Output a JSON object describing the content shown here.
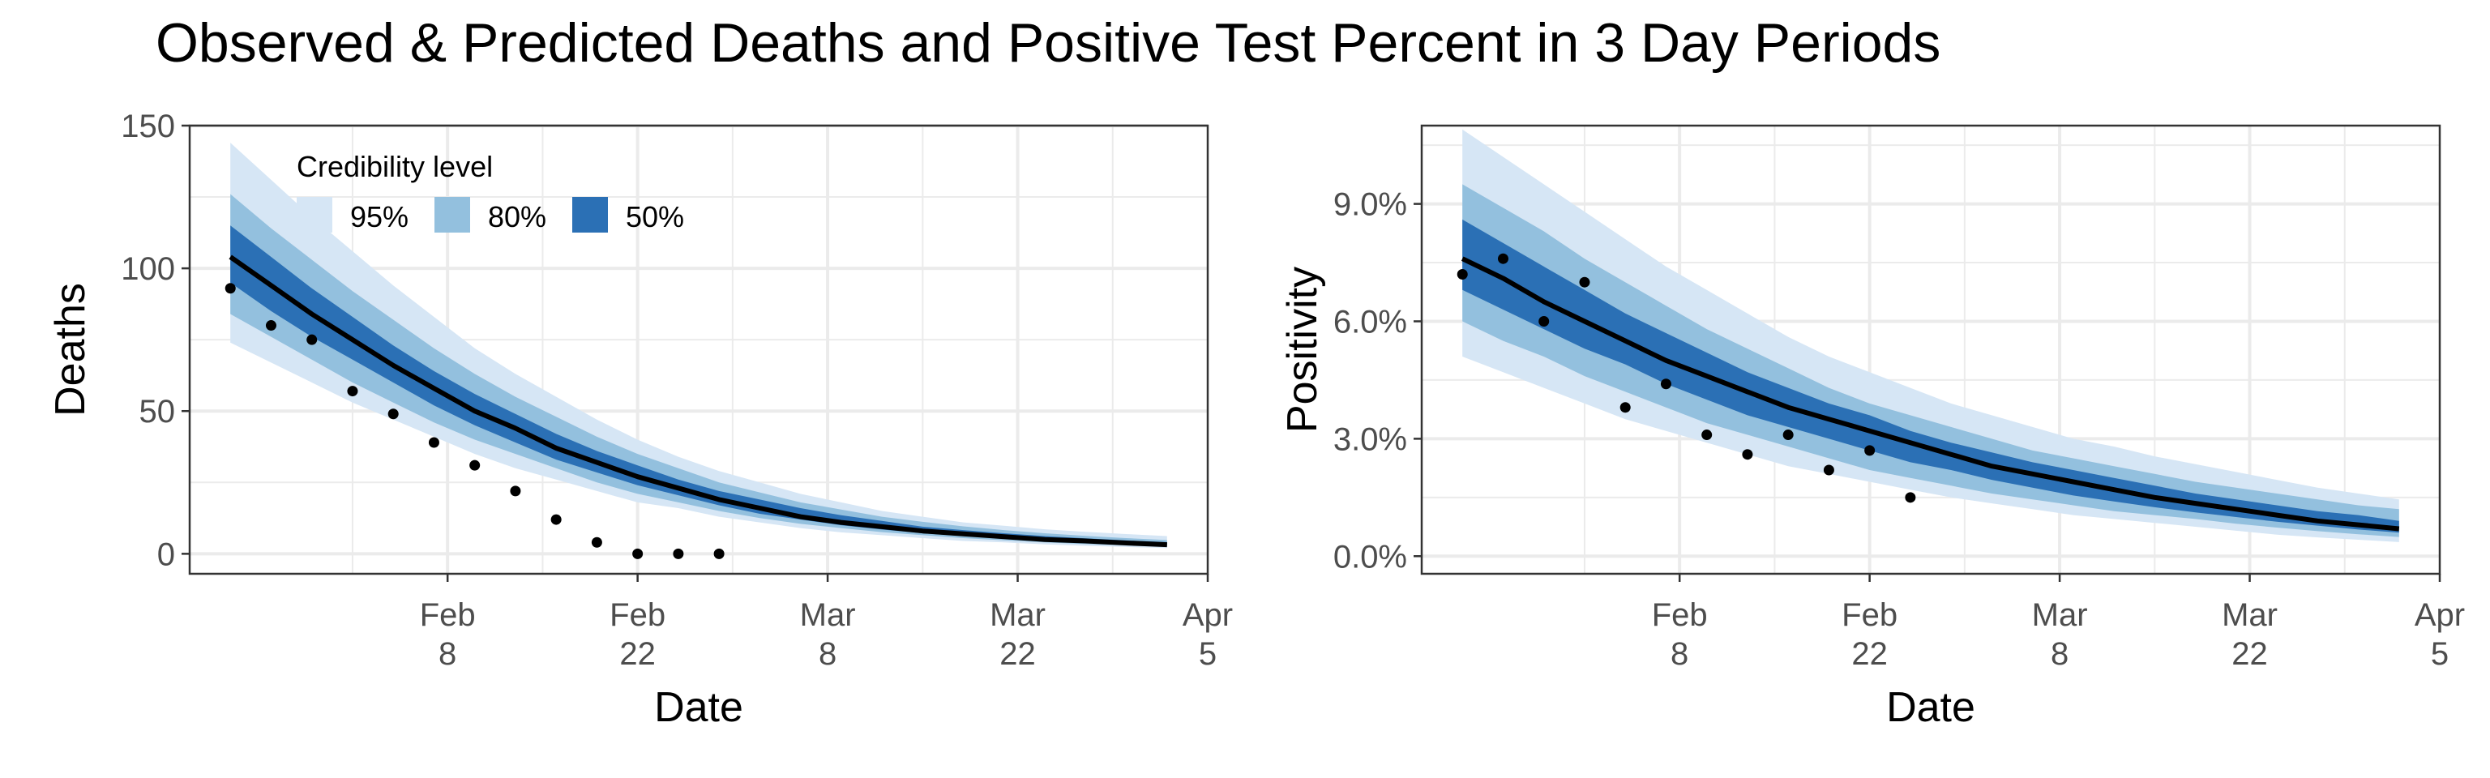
{
  "title": "Observed & Predicted Deaths and Positive Test Percent in 3 Day Periods",
  "legend": {
    "title": "Credibility level",
    "items": [
      {
        "label": "95%",
        "color": "#d6e6f5"
      },
      {
        "label": "80%",
        "color": "#93c0de"
      },
      {
        "label": "50%",
        "color": "#2b70b5"
      }
    ]
  },
  "colors": {
    "line": "#000000",
    "points": "#000000",
    "grid_major": "#ebebeb",
    "panel_border": "#333333"
  },
  "chart_data": [
    {
      "type": "line",
      "xlabel": "Date",
      "ylabel": "Deaths",
      "x_range": [
        "2021-01-20",
        "2021-04-05"
      ],
      "ylim": [
        -7,
        150
      ],
      "x_ticks": [
        {
          "date": "2021-02-08",
          "line1": "Feb",
          "line2": "8"
        },
        {
          "date": "2021-02-22",
          "line1": "Feb",
          "line2": "22"
        },
        {
          "date": "2021-03-08",
          "line1": "Mar",
          "line2": "8"
        },
        {
          "date": "2021-03-22",
          "line1": "Mar",
          "line2": "22"
        },
        {
          "date": "2021-04-05",
          "line1": "Apr",
          "line2": "5"
        }
      ],
      "y_ticks": [
        {
          "value": 0,
          "label": "0"
        },
        {
          "value": 50,
          "label": "50"
        },
        {
          "value": 100,
          "label": "100"
        },
        {
          "value": 150,
          "label": "150"
        }
      ],
      "grid": true,
      "legend_position": "top-left",
      "forecast": {
        "x": [
          "2021-01-23",
          "2021-01-26",
          "2021-01-29",
          "2021-02-01",
          "2021-02-04",
          "2021-02-07",
          "2021-02-10",
          "2021-02-13",
          "2021-02-16",
          "2021-02-19",
          "2021-02-22",
          "2021-02-25",
          "2021-02-28",
          "2021-03-03",
          "2021-03-06",
          "2021-03-09",
          "2021-03-12",
          "2021-03-15",
          "2021-03-18",
          "2021-03-21",
          "2021-03-24",
          "2021-03-27",
          "2021-03-30",
          "2021-04-02"
        ],
        "median": [
          104,
          94,
          84,
          75,
          66,
          58,
          50,
          44,
          37,
          32,
          27,
          23,
          19,
          16,
          13,
          11,
          9.5,
          8,
          7,
          6,
          5,
          4.5,
          3.8,
          3.2
        ],
        "lower_95": [
          74,
          67,
          60,
          53,
          47,
          41,
          35,
          30,
          26,
          22,
          18,
          16,
          13,
          11,
          9,
          7.5,
          6.5,
          5.5,
          4.5,
          4,
          3.3,
          2.8,
          2.4,
          2
        ],
        "upper_95": [
          144,
          131,
          118,
          106,
          94,
          83,
          72,
          63,
          55,
          47,
          40,
          34,
          29,
          25,
          21,
          18,
          15,
          13,
          11,
          9.8,
          8.6,
          7.7,
          6.9,
          6.2
        ],
        "lower_80": [
          84,
          76,
          68,
          60,
          53,
          46,
          40,
          35,
          30,
          25,
          21,
          18,
          15,
          12.5,
          10.5,
          9,
          7.6,
          6.5,
          5.5,
          4.7,
          4,
          3.4,
          2.9,
          2.5
        ],
        "upper_80": [
          126,
          114,
          103,
          92,
          82,
          72,
          63,
          55,
          48,
          41,
          35,
          30,
          25,
          21.5,
          18,
          15.5,
          13,
          11.2,
          9.6,
          8.3,
          7.2,
          6.3,
          5.5,
          4.8
        ],
        "lower_50": [
          95,
          85,
          76,
          68,
          60,
          52,
          45,
          39,
          33,
          28.5,
          24,
          20.5,
          17,
          14,
          12,
          10,
          8.5,
          7.2,
          6.2,
          5.3,
          4.5,
          3.9,
          3.3,
          2.8
        ],
        "upper_50": [
          115,
          104,
          93,
          83,
          73,
          64,
          56,
          49,
          42,
          36,
          31,
          26,
          22,
          19,
          16,
          13.5,
          11.5,
          9.5,
          8.3,
          7.2,
          6.2,
          5.4,
          4.7,
          4.1
        ]
      },
      "observed": {
        "x": [
          "2021-01-23",
          "2021-01-26",
          "2021-01-29",
          "2021-02-01",
          "2021-02-04",
          "2021-02-07",
          "2021-02-10",
          "2021-02-13",
          "2021-02-16",
          "2021-02-19",
          "2021-02-22",
          "2021-02-25",
          "2021-02-28"
        ],
        "y": [
          93,
          80,
          75,
          57,
          49,
          39,
          31,
          22,
          12,
          4,
          0,
          0,
          0
        ]
      }
    },
    {
      "type": "line",
      "xlabel": "Date",
      "ylabel": "Positivity",
      "x_range": [
        "2021-01-20",
        "2021-04-05"
      ],
      "ylim": [
        -0.45,
        11
      ],
      "x_ticks": [
        {
          "date": "2021-02-08",
          "line1": "Feb",
          "line2": "8"
        },
        {
          "date": "2021-02-22",
          "line1": "Feb",
          "line2": "22"
        },
        {
          "date": "2021-03-08",
          "line1": "Mar",
          "line2": "8"
        },
        {
          "date": "2021-03-22",
          "line1": "Mar",
          "line2": "22"
        },
        {
          "date": "2021-04-05",
          "line1": "Apr",
          "line2": "5"
        }
      ],
      "y_ticks": [
        {
          "value": 0,
          "label": "0.0%"
        },
        {
          "value": 3,
          "label": "3.0%"
        },
        {
          "value": 6,
          "label": "6.0%"
        },
        {
          "value": 9,
          "label": "9.0%"
        }
      ],
      "grid": true,
      "forecast": {
        "x": [
          "2021-01-23",
          "2021-01-26",
          "2021-01-29",
          "2021-02-01",
          "2021-02-04",
          "2021-02-07",
          "2021-02-10",
          "2021-02-13",
          "2021-02-16",
          "2021-02-19",
          "2021-02-22",
          "2021-02-25",
          "2021-02-28",
          "2021-03-03",
          "2021-03-06",
          "2021-03-09",
          "2021-03-12",
          "2021-03-15",
          "2021-03-18",
          "2021-03-21",
          "2021-03-24",
          "2021-03-27",
          "2021-03-30",
          "2021-04-02"
        ],
        "median": [
          7.6,
          7.1,
          6.5,
          6,
          5.5,
          5,
          4.6,
          4.2,
          3.8,
          3.5,
          3.2,
          2.9,
          2.6,
          2.3,
          2.1,
          1.9,
          1.7,
          1.5,
          1.35,
          1.2,
          1.05,
          0.9,
          0.8,
          0.7
        ],
        "lower_95": [
          5.1,
          4.7,
          4.3,
          3.9,
          3.5,
          3.2,
          2.9,
          2.6,
          2.3,
          2.1,
          1.9,
          1.7,
          1.5,
          1.35,
          1.2,
          1.05,
          0.95,
          0.85,
          0.75,
          0.65,
          0.55,
          0.48,
          0.42,
          0.36
        ],
        "upper_95": [
          10.9,
          10.2,
          9.5,
          8.8,
          8.1,
          7.4,
          6.8,
          6.2,
          5.6,
          5.1,
          4.7,
          4.3,
          3.9,
          3.6,
          3.3,
          3,
          2.8,
          2.55,
          2.35,
          2.15,
          1.95,
          1.75,
          1.6,
          1.45
        ],
        "lower_80": [
          6,
          5.5,
          5.1,
          4.6,
          4.2,
          3.8,
          3.4,
          3.1,
          2.8,
          2.5,
          2.2,
          2,
          1.8,
          1.6,
          1.45,
          1.3,
          1.15,
          1.05,
          0.95,
          0.83,
          0.73,
          0.64,
          0.56,
          0.49
        ],
        "upper_80": [
          9.5,
          8.9,
          8.3,
          7.6,
          7,
          6.4,
          5.8,
          5.3,
          4.8,
          4.3,
          3.9,
          3.6,
          3.3,
          3,
          2.7,
          2.5,
          2.3,
          2.1,
          1.9,
          1.75,
          1.6,
          1.45,
          1.3,
          1.2
        ],
        "lower_50": [
          6.8,
          6.3,
          5.8,
          5.3,
          4.9,
          4.4,
          4,
          3.6,
          3.3,
          3,
          2.7,
          2.4,
          2.2,
          1.95,
          1.75,
          1.55,
          1.4,
          1.25,
          1.12,
          1,
          0.88,
          0.78,
          0.68,
          0.6
        ],
        "upper_50": [
          8.6,
          8,
          7.4,
          6.8,
          6.2,
          5.7,
          5.2,
          4.7,
          4.3,
          3.9,
          3.6,
          3.2,
          2.9,
          2.65,
          2.4,
          2.2,
          2,
          1.8,
          1.6,
          1.45,
          1.3,
          1.15,
          1.05,
          0.9
        ]
      },
      "observed": {
        "x": [
          "2021-01-23",
          "2021-01-26",
          "2021-01-29",
          "2021-02-01",
          "2021-02-04",
          "2021-02-07",
          "2021-02-10",
          "2021-02-13",
          "2021-02-16",
          "2021-02-19",
          "2021-02-22",
          "2021-02-25",
          "2021-02-28"
        ],
        "y": [
          7.2,
          7.6,
          6,
          7,
          3.8,
          4.4,
          3.1,
          2.6,
          3.1,
          2.2,
          2.7,
          1.5,
          null
        ]
      }
    }
  ]
}
